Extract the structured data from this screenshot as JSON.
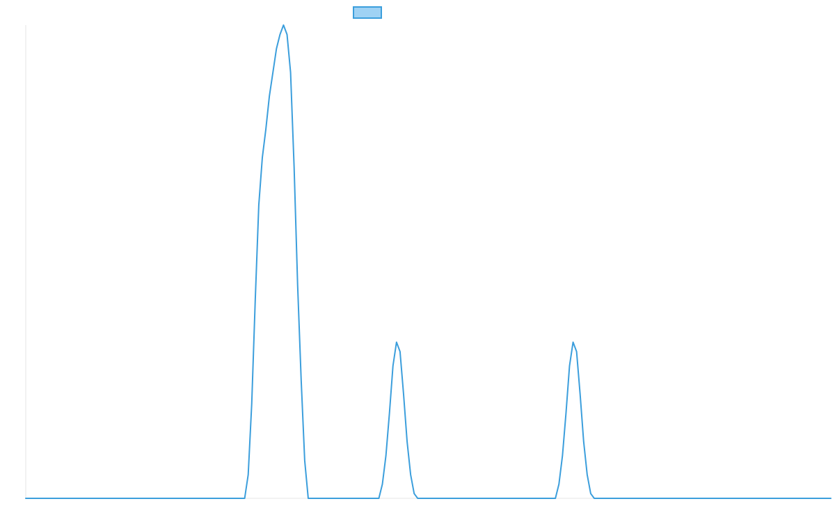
{
  "chart_data": {
    "type": "line",
    "title": "",
    "xlabel": "",
    "ylabel": "",
    "ylim": [
      0,
      1
    ],
    "grid": false,
    "legend": {
      "placement": "top-center",
      "swatch_fill": "#9fd2f4",
      "swatch_stroke": "#3b9edc",
      "label": ""
    },
    "colors": {
      "line": "#3b9edc",
      "axis": "#e6e6e6"
    },
    "series": [
      {
        "values": [
          0,
          0,
          0,
          0,
          0,
          0,
          0,
          0,
          0,
          0,
          0,
          0,
          0,
          0,
          0,
          0,
          0,
          0,
          0,
          0,
          0,
          0,
          0,
          0,
          0,
          0,
          0,
          0,
          0,
          0,
          0,
          0,
          0,
          0,
          0,
          0,
          0,
          0,
          0,
          0,
          0,
          0,
          0,
          0,
          0,
          0,
          0,
          0,
          0,
          0,
          0,
          0,
          0,
          0,
          0,
          0,
          0,
          0,
          0,
          0,
          0,
          0,
          0,
          0.05,
          0.2,
          0.42,
          0.62,
          0.72,
          0.78,
          0.85,
          0.9,
          0.95,
          0.98,
          1,
          0.98,
          0.9,
          0.7,
          0.45,
          0.25,
          0.08,
          0,
          0,
          0,
          0,
          0,
          0,
          0,
          0,
          0,
          0,
          0,
          0,
          0,
          0,
          0,
          0,
          0,
          0,
          0,
          0,
          0,
          0.03,
          0.09,
          0.18,
          0.28,
          0.33,
          0.31,
          0.22,
          0.12,
          0.05,
          0.01,
          0,
          0,
          0,
          0,
          0,
          0,
          0,
          0,
          0,
          0,
          0,
          0,
          0,
          0,
          0,
          0,
          0,
          0,
          0,
          0,
          0,
          0,
          0,
          0,
          0,
          0,
          0,
          0,
          0,
          0,
          0,
          0,
          0,
          0,
          0,
          0,
          0,
          0,
          0,
          0,
          0.03,
          0.09,
          0.18,
          0.28,
          0.33,
          0.31,
          0.22,
          0.12,
          0.05,
          0.01,
          0,
          0,
          0,
          0,
          0,
          0,
          0,
          0,
          0,
          0,
          0,
          0,
          0,
          0,
          0,
          0,
          0,
          0,
          0,
          0,
          0,
          0,
          0,
          0,
          0,
          0,
          0,
          0,
          0,
          0,
          0,
          0,
          0,
          0,
          0,
          0,
          0,
          0,
          0,
          0,
          0,
          0,
          0,
          0,
          0,
          0,
          0,
          0,
          0,
          0,
          0,
          0,
          0,
          0,
          0,
          0,
          0,
          0,
          0,
          0,
          0,
          0,
          0,
          0,
          0,
          0,
          0,
          0
        ]
      }
    ]
  }
}
